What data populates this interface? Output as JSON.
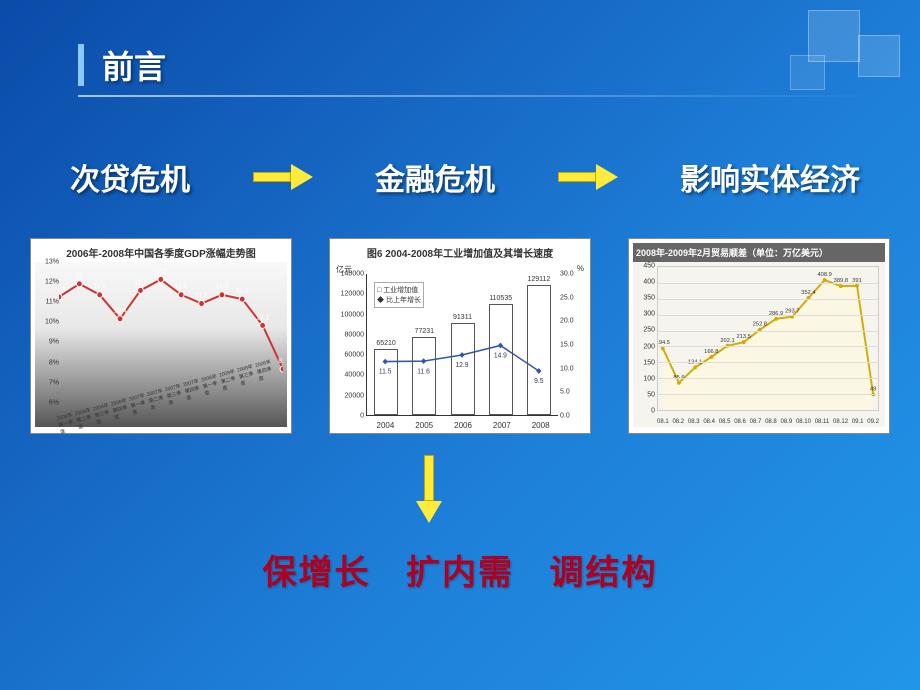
{
  "slide": {
    "title": "前言",
    "background_gradient": [
      "#0a4ba8",
      "#1565c0",
      "#1e7fd8",
      "#2196e8"
    ],
    "accent_bar_color": "#8cc8ff"
  },
  "flow": {
    "item1": "次贷危机",
    "item2": "金融危机",
    "item3": "影响实体经济",
    "arrow_color": "#ffeb3b",
    "label_color": "#ffffff",
    "label_fontsize": 30
  },
  "chart1": {
    "type": "line",
    "title": "2006年-2008年中国各季度GDP涨幅走势图",
    "categories": [
      "2006年第一季度",
      "2006年第二季度",
      "2006年第三季度",
      "2006年第四季度",
      "2007年第一季度",
      "2007年第二季度",
      "2007年第三季度",
      "2007年第四季度",
      "2008年第一季度",
      "2008年第二季度",
      "2008年第三季度",
      "2008年第四季度"
    ],
    "values": [
      11.4,
      12.0,
      11.5,
      10.4,
      11.7,
      12.2,
      11.5,
      11.1,
      11.5,
      11.3,
      10.1,
      8.1
    ],
    "ylim": [
      6,
      13
    ],
    "ytick_step": 1,
    "line_color": "#cc3333",
    "marker_color": "#ffffff",
    "background": "gradient-gray",
    "label_fontsize": 7
  },
  "chart2": {
    "type": "bar+line",
    "title": "图6  2004-2008年工业增加值及其增长速度",
    "categories": [
      "2004",
      "2005",
      "2006",
      "2007",
      "2008"
    ],
    "bar_values": [
      65210,
      77231,
      91311,
      110535,
      129112
    ],
    "line_values": [
      11.5,
      11.6,
      12.9,
      14.9,
      9.5
    ],
    "y_left_label": "亿元",
    "y_right_label": "%",
    "y_left_lim": [
      0,
      140000
    ],
    "y_left_tick": 20000,
    "y_right_lim": [
      0,
      30
    ],
    "y_right_tick": 5,
    "bar_color": "#ffffff",
    "bar_border": "#555555",
    "line_color": "#3355aa",
    "legend_bar": "工业增加值",
    "legend_line": "比上年增长",
    "background_color": "#ffffff"
  },
  "chart3": {
    "type": "line",
    "title": "2008年-2009年2月贸易顺差（单位：万亿美元）",
    "categories": [
      "08.1",
      "08.2",
      "08.3",
      "08.4",
      "08.5",
      "08.6",
      "08.7",
      "08.8",
      "08.9",
      "08.10",
      "08.11",
      "08.12",
      "09.1",
      "09.2"
    ],
    "values": [
      194.5,
      85.6,
      134.1,
      166.8,
      202.1,
      213.5,
      252.8,
      286.9,
      293.7,
      352.4,
      408.9,
      389.8,
      391,
      49
    ],
    "ylim": [
      0,
      450
    ],
    "ytick_step": 50,
    "line_color": "#d4aa00",
    "marker_color": "#d4aa00",
    "fill_color": "#fff8dc",
    "background_color": "#f5f5ee",
    "title_bg": "#666666",
    "title_color": "#ffffff"
  },
  "bottom": {
    "part1": "保增长",
    "part2": "扩内需",
    "part3": "调结构",
    "color": "#b00020",
    "fontsize": 34
  }
}
